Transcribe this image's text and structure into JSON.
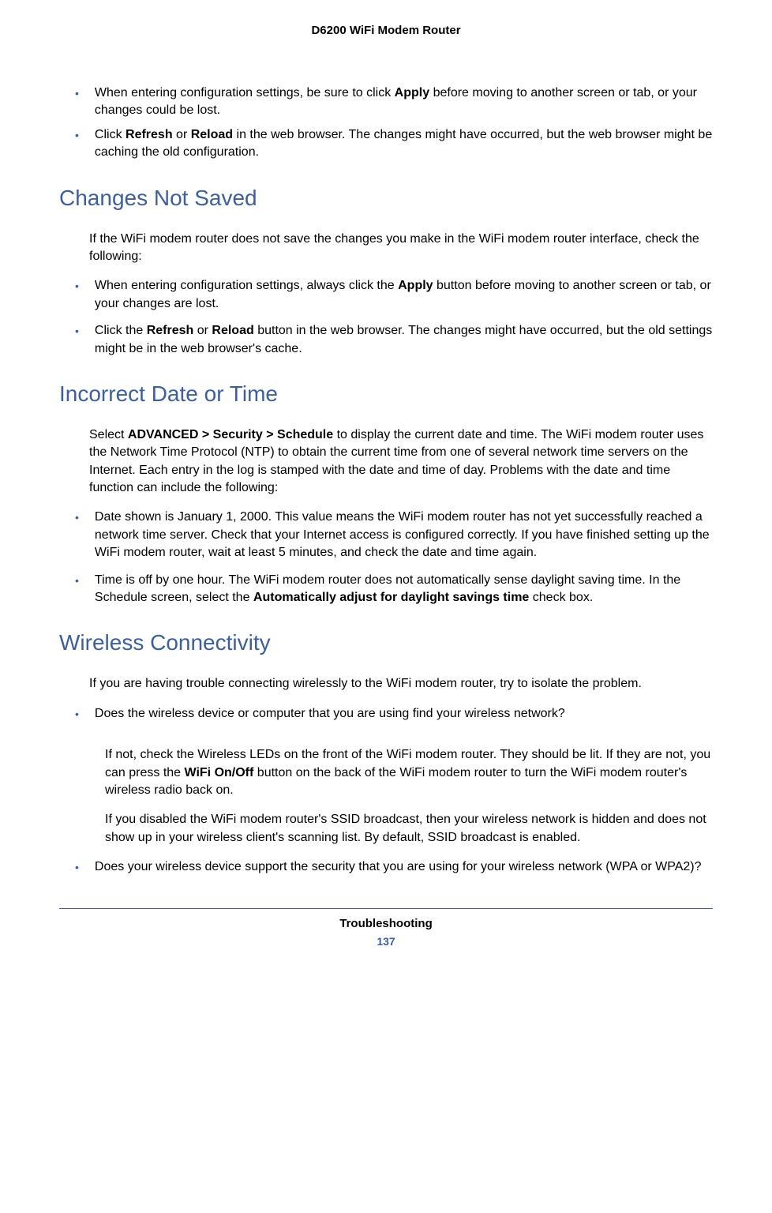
{
  "header": {
    "title": "D6200 WiFi Modem Router"
  },
  "intro_bullets": [
    {
      "prefix": "When entering configuration settings, be sure to click ",
      "bold1": "Apply",
      "suffix": " before moving to another screen or tab, or your changes could be lost."
    },
    {
      "prefix": "Click ",
      "bold1": "Refresh",
      "mid1": " or ",
      "bold2": "Reload",
      "suffix": " in the web browser. The changes might have occurred, but the web browser might be caching the old configuration."
    }
  ],
  "section1": {
    "heading": "Changes Not Saved",
    "intro": "If the WiFi modem router does not save the changes you make in the WiFi modem router interface, check the following:",
    "bullets": [
      {
        "prefix": "When entering configuration settings, always click the ",
        "bold1": "Apply",
        "suffix": " button before moving to another screen or tab, or your changes are lost."
      },
      {
        "prefix": "Click the ",
        "bold1": "Refresh",
        "mid1": " or ",
        "bold2": "Reload",
        "suffix": " button in the web browser. The changes might have occurred, but the old settings might be in the web browser's cache."
      }
    ]
  },
  "section2": {
    "heading": "Incorrect Date or Time",
    "intro_prefix": "Select ",
    "intro_bold": "ADVANCED > Security > Schedule",
    "intro_suffix": " to display the current date and time. The WiFi modem router uses the Network Time Protocol (NTP) to obtain the current time from one of several network time servers on the Internet. Each entry in the log is stamped with the date and time of day. Problems with the date and time function can include the following:",
    "bullets": [
      {
        "text": "Date shown is January 1, 2000. This value means the WiFi modem router has not yet successfully reached a network time server. Check that your Internet access is configured correctly. If you have finished setting up the WiFi modem router, wait at least 5 minutes, and check the date and time again."
      },
      {
        "prefix": "Time is off by one hour. The WiFi modem router does not automatically sense daylight saving time. In the Schedule screen, select the ",
        "bold1": "Automatically adjust for daylight savings time",
        "suffix": " check box."
      }
    ]
  },
  "section3": {
    "heading": "Wireless Connectivity",
    "intro": "If you are having trouble connecting wirelessly to the WiFi modem router, try to isolate the problem.",
    "bullet1": "Does the wireless device or computer that you are using find your wireless network?",
    "para1_prefix": "If not, check the Wireless LEDs on the front of the WiFi modem router. They should be lit. If they are not, you can press the ",
    "para1_bold": "WiFi On/Off",
    "para1_suffix": " button on the back of the WiFi modem router to turn the WiFi modem router's wireless radio back on.",
    "para2": "If you disabled the WiFi modem router's SSID broadcast, then your wireless network is hidden and does not show up in your wireless client's scanning list. By default, SSID broadcast is enabled.",
    "bullet2": "Does your wireless device support the security that you are using for your wireless network (WPA or WPA2)?"
  },
  "footer": {
    "section_name": "Troubleshooting",
    "page_number": "137"
  },
  "colors": {
    "heading_color": "#3a5fa8",
    "bullet_color": "#3a5fa8",
    "text_color": "#000000",
    "background": "#ffffff"
  },
  "typography": {
    "body_fontsize": 16,
    "heading_fontsize": 28,
    "header_fontsize": 15
  }
}
